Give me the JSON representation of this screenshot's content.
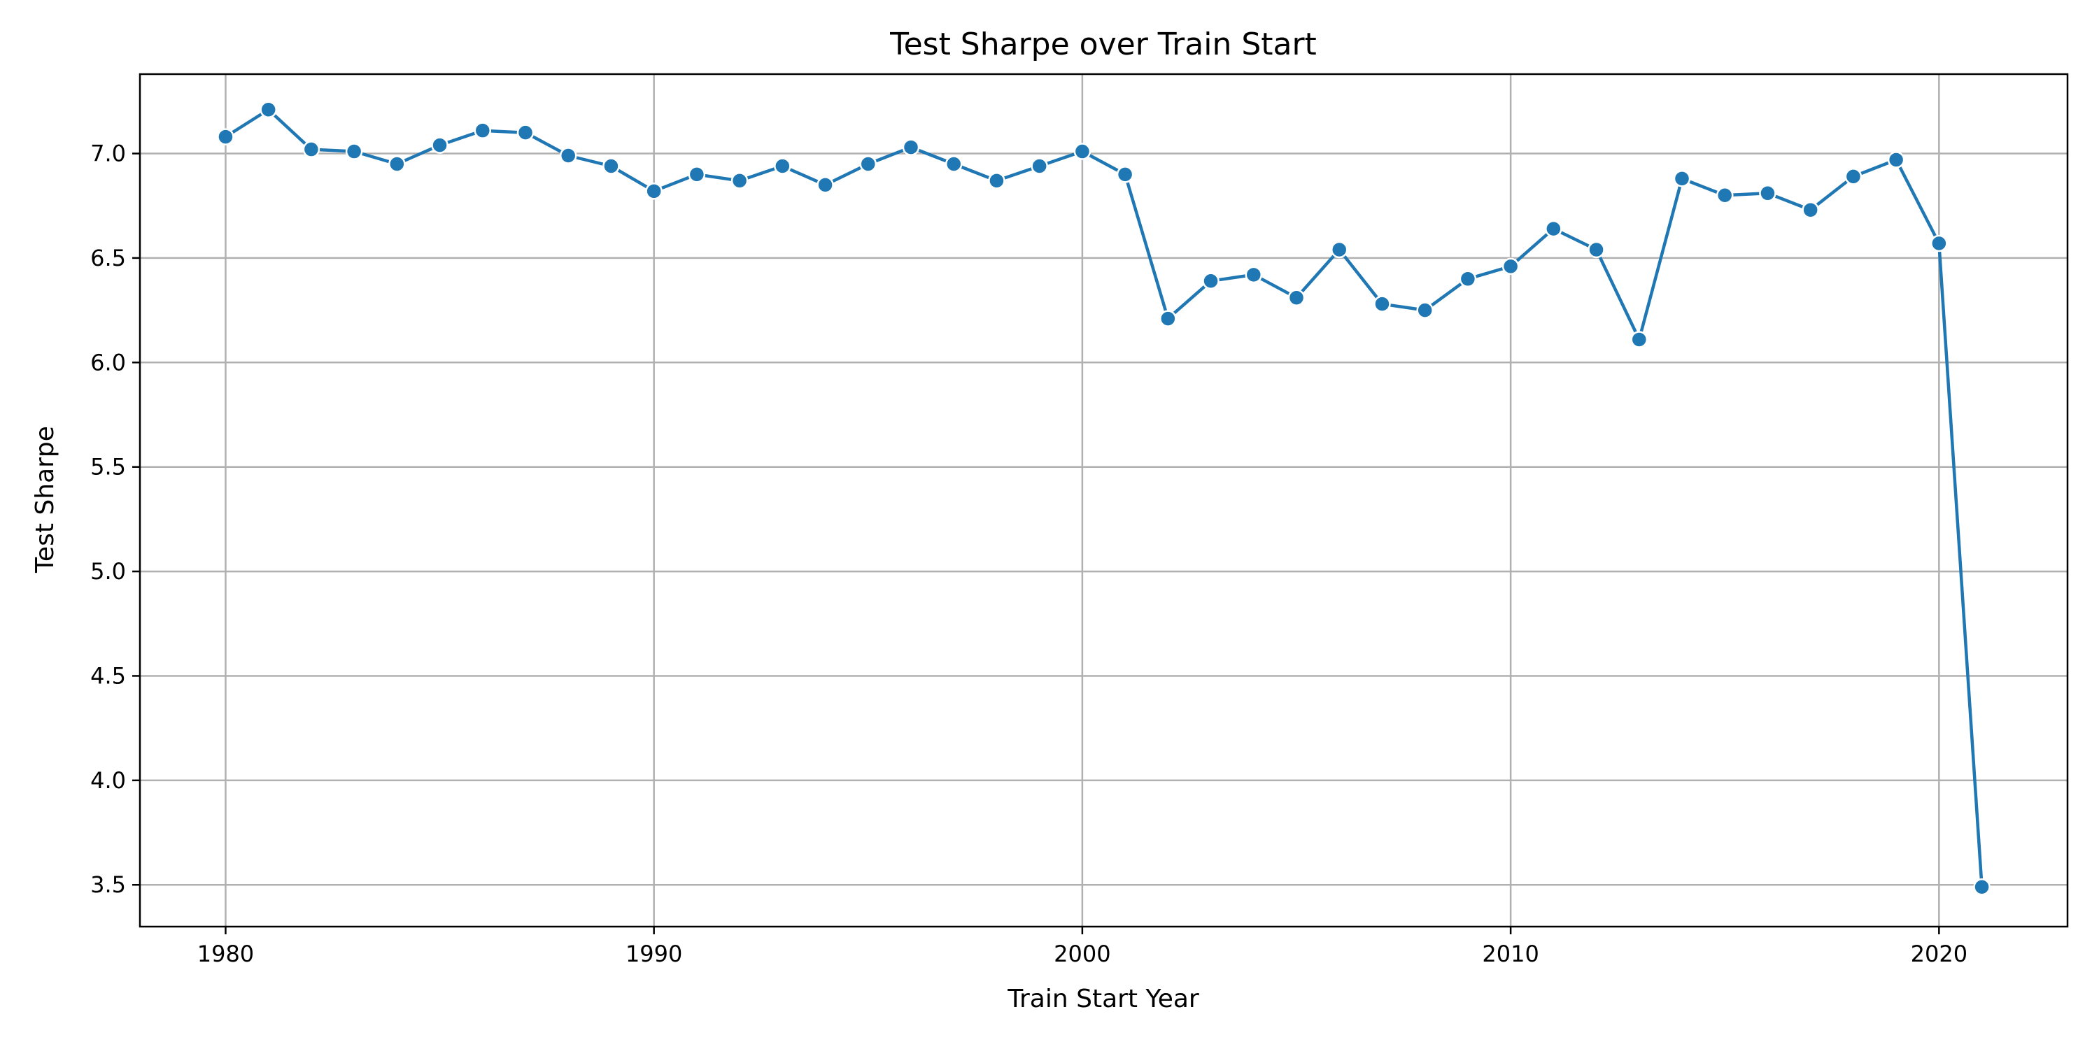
{
  "chart_data": {
    "type": "line",
    "title": "Test Sharpe over Train Start",
    "xlabel": "Train Start Year",
    "ylabel": "Test Sharpe",
    "xlim": [
      1978,
      2023
    ],
    "ylim": [
      3.3,
      7.38
    ],
    "xticks": [
      1980,
      1990,
      2000,
      2010,
      2020
    ],
    "xtick_labels": [
      "1980",
      "1990",
      "2000",
      "2010",
      "2020"
    ],
    "yticks": [
      3.5,
      4.0,
      4.5,
      5.0,
      5.5,
      6.0,
      6.5,
      7.0
    ],
    "ytick_labels": [
      "3.5",
      "4.0",
      "4.5",
      "5.0",
      "5.5",
      "6.0",
      "6.5",
      "7.0"
    ],
    "grid": true,
    "series": [
      {
        "color": "#1f77b4",
        "x": [
          1980,
          1981,
          1982,
          1983,
          1984,
          1985,
          1986,
          1987,
          1988,
          1989,
          1990,
          1991,
          1992,
          1993,
          1994,
          1995,
          1996,
          1997,
          1998,
          1999,
          2000,
          2001,
          2002,
          2003,
          2004,
          2005,
          2006,
          2007,
          2008,
          2009,
          2010,
          2011,
          2012,
          2013,
          2014,
          2015,
          2016,
          2017,
          2018,
          2019,
          2020,
          2021
        ],
        "y": [
          7.08,
          7.21,
          7.02,
          7.01,
          6.95,
          7.04,
          7.11,
          7.1,
          6.99,
          6.94,
          6.82,
          6.9,
          6.87,
          6.94,
          6.85,
          6.95,
          7.03,
          6.95,
          6.87,
          6.94,
          7.01,
          6.9,
          6.21,
          6.39,
          6.42,
          6.31,
          6.54,
          6.28,
          6.25,
          6.4,
          6.46,
          6.64,
          6.54,
          6.11,
          6.88,
          6.8,
          6.81,
          6.73,
          6.89,
          6.97,
          6.57,
          3.49
        ]
      }
    ]
  }
}
